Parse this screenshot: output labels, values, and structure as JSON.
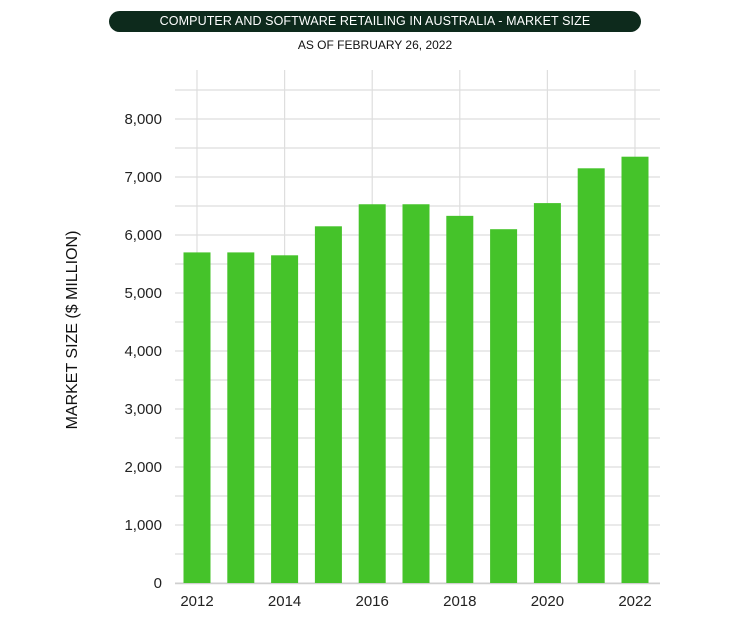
{
  "chart_data": {
    "type": "bar",
    "title": "COMPUTER AND SOFTWARE RETAILING IN AUSTRALIA - MARKET SIZE",
    "subtitle": "AS OF FEBRUARY 26, 2022",
    "ylabel": "MARKET SIZE ($ MILLION)",
    "xlabel": "",
    "categories": [
      "2012",
      "2013",
      "2014",
      "2015",
      "2016",
      "2017",
      "2018",
      "2019",
      "2020",
      "2021",
      "2022"
    ],
    "values": [
      5700,
      5700,
      5650,
      6150,
      6530,
      6530,
      6330,
      6100,
      6550,
      7150,
      7350
    ],
    "ylim": [
      0,
      8000
    ],
    "yticks": [
      0,
      1000,
      2000,
      3000,
      4000,
      5000,
      6000,
      7000,
      8000
    ],
    "ytick_labels": [
      "0",
      "1,000",
      "2,000",
      "3,000",
      "4,000",
      "5,000",
      "6,000",
      "7,000",
      "8,000"
    ],
    "xtick_labels": [
      "2012",
      "2014",
      "2016",
      "2018",
      "2020",
      "2022"
    ],
    "grid": true,
    "bar_color": "#45c32a",
    "title_bg_color": "#0d2a1c"
  }
}
